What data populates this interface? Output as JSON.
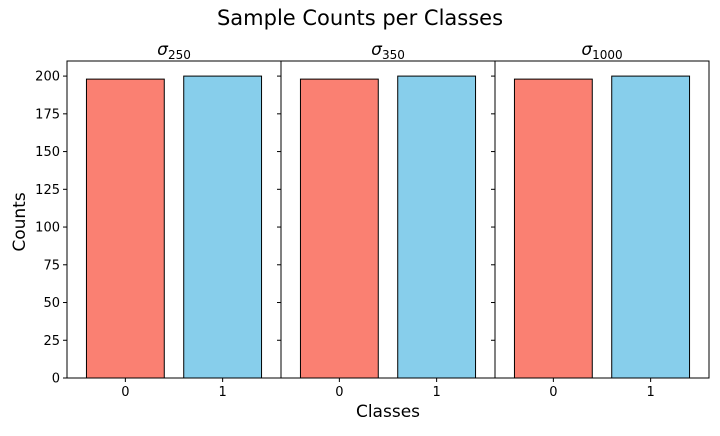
{
  "chart_data": {
    "type": "bar",
    "title": "Sample Counts per Classes",
    "xlabel": "Classes",
    "ylabel": "Counts",
    "ylim": [
      0,
      210
    ],
    "yticks": [
      0,
      25,
      50,
      75,
      100,
      125,
      150,
      175,
      200
    ],
    "categories": [
      "0",
      "1"
    ],
    "colors": [
      "#fa8072",
      "#87ceeb"
    ],
    "edge_color": "#000000",
    "panels": [
      {
        "title_symbol": "σ",
        "title_subscript": "250",
        "values": [
          198,
          200
        ]
      },
      {
        "title_symbol": "σ",
        "title_subscript": "350",
        "values": [
          198,
          200
        ]
      },
      {
        "title_symbol": "σ",
        "title_subscript": "1000",
        "values": [
          198,
          200
        ]
      }
    ]
  }
}
